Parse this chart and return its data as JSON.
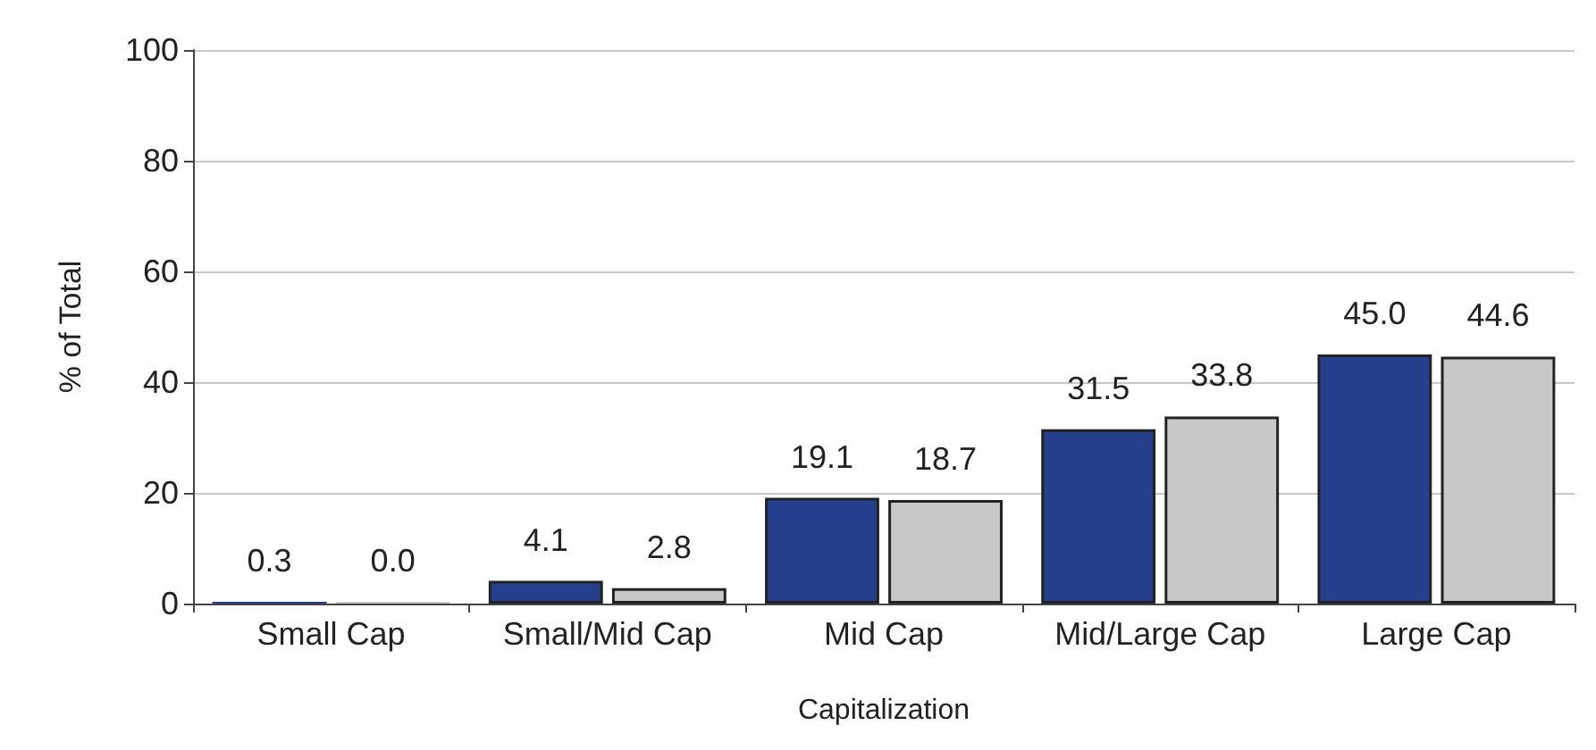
{
  "chart_data": {
    "type": "bar",
    "xlabel": "Capitalization",
    "ylabel": "% of Total",
    "categories": [
      "Small Cap",
      "Small/Mid Cap",
      "Mid Cap",
      "Mid/Large Cap",
      "Large Cap"
    ],
    "series": [
      {
        "color": "#27408e",
        "values": [
          0.3,
          4.1,
          19.1,
          31.5,
          45.0
        ],
        "value_labels": [
          "0.3",
          "4.1",
          "19.1",
          "31.5",
          "45.0"
        ]
      },
      {
        "color": "#c8c8c8",
        "values": [
          0.0,
          2.8,
          18.7,
          33.8,
          44.6
        ],
        "value_labels": [
          "0.0",
          "2.8",
          "18.7",
          "33.8",
          "44.6"
        ]
      }
    ],
    "ylim": [
      0,
      100
    ],
    "yticks": [
      0,
      20,
      40,
      60,
      80,
      100
    ],
    "grid": "y"
  }
}
